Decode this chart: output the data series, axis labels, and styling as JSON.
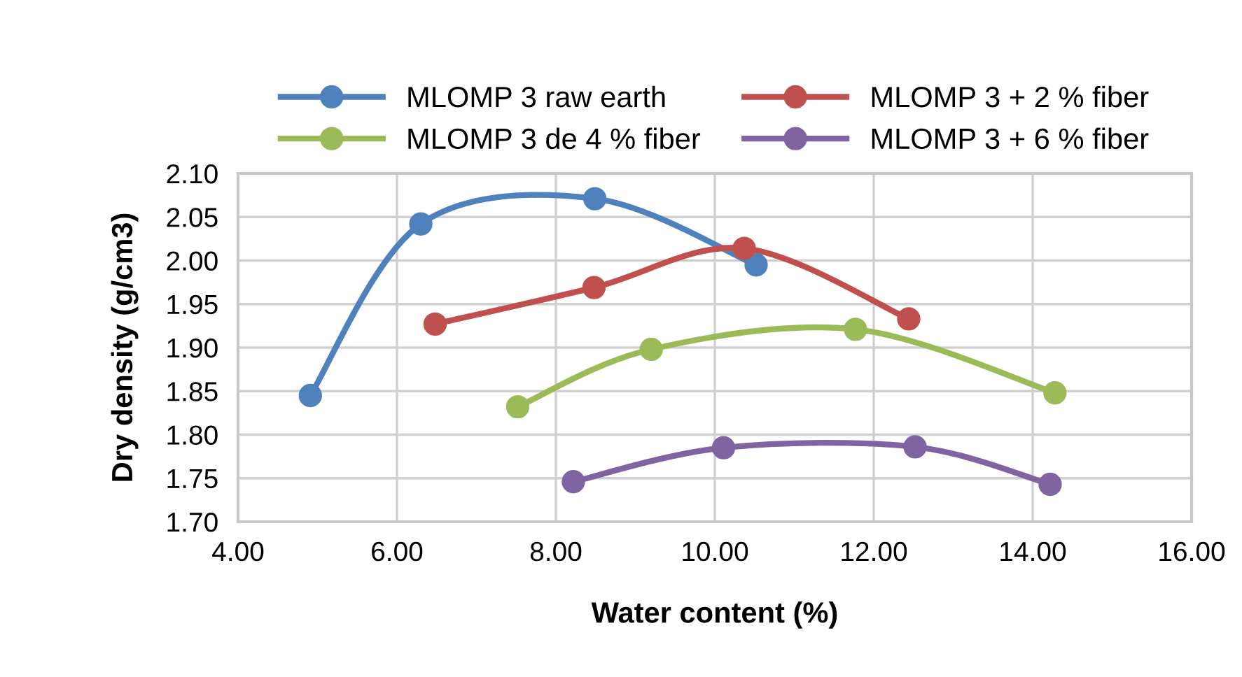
{
  "chart_data": {
    "type": "line",
    "xlabel": "Water content (%)",
    "ylabel": "Dry density (g/cm3)",
    "xlim": [
      4,
      16
    ],
    "xticks": [
      {
        "value": 4,
        "label": "4.00"
      },
      {
        "value": 6,
        "label": "6.00"
      },
      {
        "value": 8,
        "label": "8.00"
      },
      {
        "value": 10,
        "label": "10.00"
      },
      {
        "value": 12,
        "label": "12.00"
      },
      {
        "value": 14,
        "label": "14.00"
      },
      {
        "value": 16,
        "label": "16.00"
      }
    ],
    "ylim": [
      1.7,
      2.1
    ],
    "yticks": [
      {
        "value": 1.7,
        "label": "1.70"
      },
      {
        "value": 1.75,
        "label": "1.75"
      },
      {
        "value": 1.8,
        "label": "1.80"
      },
      {
        "value": 1.85,
        "label": "1.85"
      },
      {
        "value": 1.9,
        "label": "1.90"
      },
      {
        "value": 1.95,
        "label": "1.95"
      },
      {
        "value": 2.0,
        "label": "2.00"
      },
      {
        "value": 2.05,
        "label": "2.05"
      },
      {
        "value": 2.1,
        "label": "2.10"
      }
    ],
    "grid": true,
    "legend": "top",
    "marker": "circle",
    "line_style": "solid",
    "series": [
      {
        "name": "MLOMP 3 raw earth",
        "color": "#4f81bd",
        "x": [
          4.91,
          6.3,
          8.49,
          10.52
        ],
        "values": [
          1.845,
          2.042,
          2.071,
          1.995
        ]
      },
      {
        "name": "MLOMP 3 + 2 % fiber",
        "color": "#c0504d",
        "x": [
          6.48,
          8.48,
          10.37,
          12.44
        ],
        "values": [
          1.927,
          1.969,
          2.014,
          1.933
        ]
      },
      {
        "name": "MLOMP 3 de 4 % fiber",
        "color": "#9bbb59",
        "x": [
          7.52,
          9.2,
          11.77,
          14.28
        ],
        "values": [
          1.832,
          1.898,
          1.921,
          1.848
        ]
      },
      {
        "name": "MLOMP 3 + 6 % fiber",
        "color": "#8064a2",
        "x": [
          8.22,
          10.11,
          12.52,
          14.22
        ],
        "values": [
          1.746,
          1.785,
          1.786,
          1.743
        ]
      }
    ]
  }
}
